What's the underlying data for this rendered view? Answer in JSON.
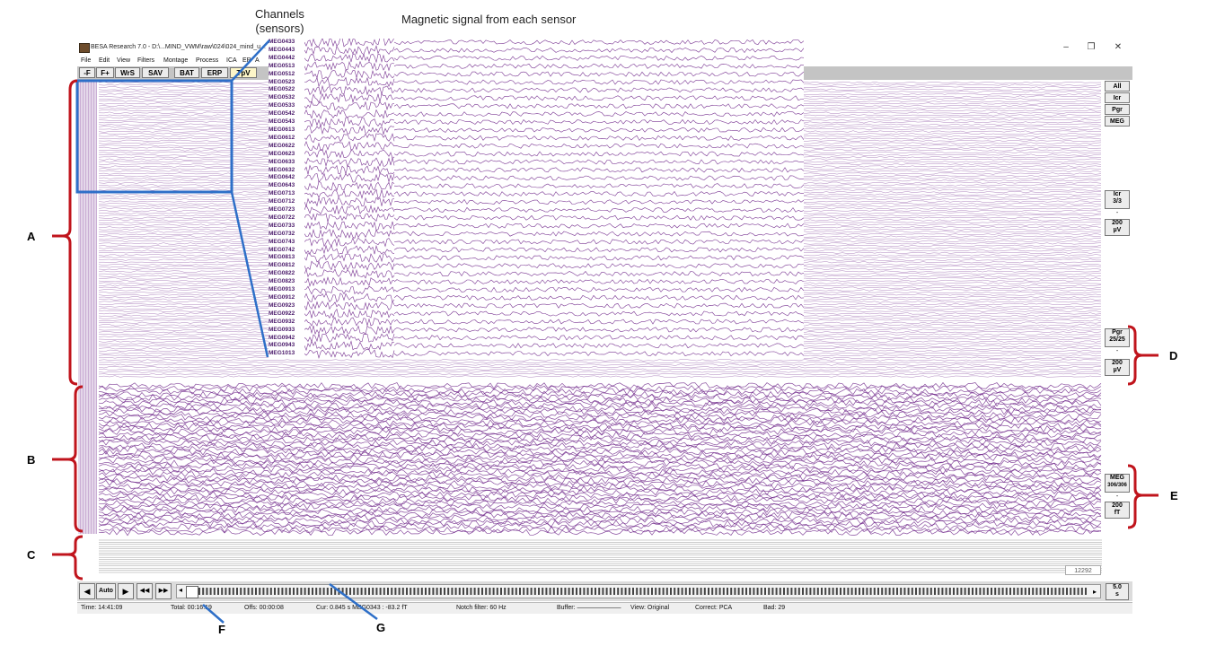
{
  "window": {
    "title": "BESA Research 7.0 - D:\\...MIND_VWM\\raw\\024\\024_mind_u...",
    "minimize": "–",
    "maximize": "❐",
    "close": "✕"
  },
  "menu": [
    "File",
    "Edit",
    "View",
    "Filters",
    "Montage",
    "Process",
    "ICA",
    "ER",
    "A"
  ],
  "toolbar": [
    "-F",
    "F+",
    "WrS",
    "SAV",
    "BAT",
    "ERP",
    "TpV"
  ],
  "right_panel": {
    "all": "All",
    "icr": "Icr",
    "pgr": "Pgr",
    "meg": "MEG",
    "icr_group": {
      "label": "Icr",
      "count": "3/3",
      "sep": "-",
      "scale": "200",
      "unit": "µV"
    },
    "pgr_group": {
      "label": "Pgr",
      "count": "25/25",
      "sep": "-",
      "scale": "200",
      "unit": "µV"
    },
    "meg_group": {
      "label": "MEG",
      "count": "306/306",
      "sep": "-",
      "scale": "200",
      "unit": "fT"
    }
  },
  "sample_counter": "12292",
  "nav": {
    "prev": "◀",
    "auto": "Auto",
    "next": "▶",
    "rewind": "◀◀",
    "forward": "▶▶",
    "scroll_left": "◂",
    "scroll_right": "▸",
    "page_len": "5.0",
    "page_unit": "s"
  },
  "status": {
    "time": "Time: 14:41:09",
    "total": "Total: 00:16:19",
    "offs": "Offs: 00:00:08",
    "cur": "Cur: 0.845 s MEG0343 : -83.2 fT",
    "notch": "Notch filter: 60 Hz",
    "buffer": "Buffer: ———————",
    "view": "View: Original",
    "correct": "Correct: PCA",
    "bad": "Bad: 29"
  },
  "zoom_channels": [
    "MEG0433",
    "MEG0443",
    "MEG0442",
    "MEG0513",
    "MEG0512",
    "MEG0523",
    "MEG0522",
    "MEG0532",
    "MEG0533",
    "MEG0542",
    "MEG0543",
    "MEG0613",
    "MEG0612",
    "MEG0622",
    "MEG0623",
    "MEG0633",
    "MEG0632",
    "MEG0642",
    "MEG0643",
    "MEG0713",
    "MEG0712",
    "MEG0723",
    "MEG0722",
    "MEG0733",
    "MEG0732",
    "MEG0743",
    "MEG0742",
    "MEG0813",
    "MEG0812",
    "MEG0822",
    "MEG0823",
    "MEG0913",
    "MEG0912",
    "MEG0923",
    "MEG0922",
    "MEG0932",
    "MEG0933",
    "MEG0942",
    "MEG0943",
    "MEG1013"
  ],
  "annotations": {
    "channels": "Channels\n(sensors)",
    "signal": "Magnetic signal from each sensor",
    "letters": [
      "A",
      "B",
      "C",
      "D",
      "E",
      "F",
      "G"
    ]
  },
  "colors": {
    "trace": "#6a1f86",
    "callout": "#c0141c",
    "zoom_frame": "#2e6fc8"
  }
}
